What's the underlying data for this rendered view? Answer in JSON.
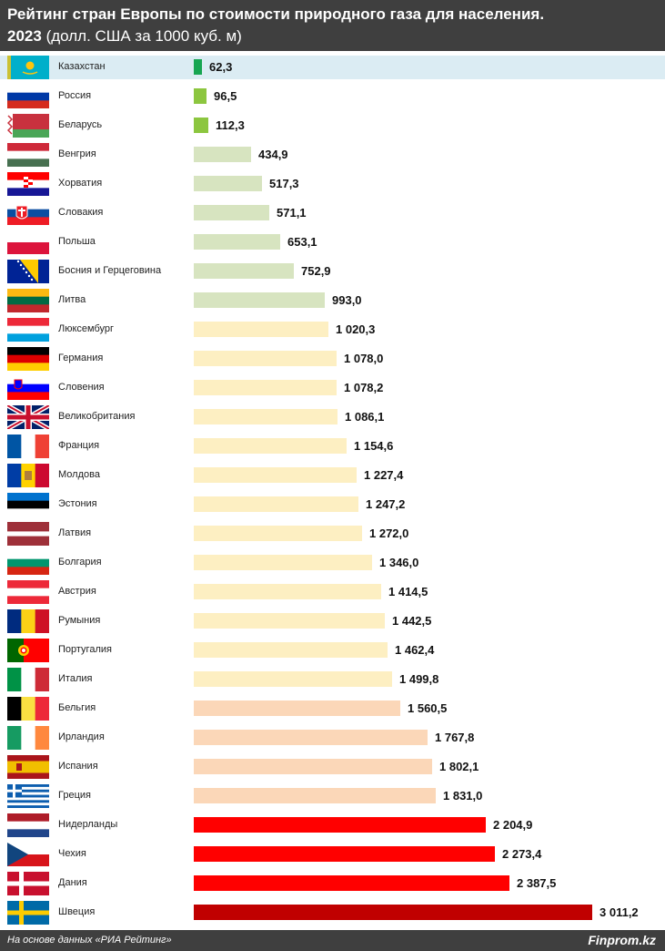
{
  "header": {
    "title_line1": "Рейтинг стран Европы по стоимости природного газа для населения.",
    "title_year": "2023",
    "title_unit": "(долл. США за 1000 куб. м)"
  },
  "chart_data": {
    "type": "bar",
    "orientation": "horizontal",
    "title": "Рейтинг стран Европы по стоимости природного газа для населения. 2023 (долл. США за 1000 куб. м)",
    "xlim": [
      0,
      3011.2
    ],
    "grid": false,
    "legend": "none",
    "categories": [
      "Казахстан",
      "Россия",
      "Беларусь",
      "Венгрия",
      "Хорватия",
      "Словакия",
      "Польша",
      "Босния и Герцеговина",
      "Литва",
      "Люксембург",
      "Германия",
      "Словения",
      "Великобритания",
      "Франция",
      "Молдова",
      "Эстония",
      "Латвия",
      "Болгария",
      "Австрия",
      "Румыния",
      "Португалия",
      "Италия",
      "Бельгия",
      "Ирландия",
      "Испания",
      "Греция",
      "Нидерланды",
      "Чехия",
      "Дания",
      "Швеция"
    ],
    "values": [
      62.3,
      96.5,
      112.3,
      434.9,
      517.3,
      571.1,
      653.1,
      752.9,
      993.0,
      1020.3,
      1078.0,
      1078.2,
      1086.1,
      1154.6,
      1227.4,
      1247.2,
      1272.0,
      1346.0,
      1414.5,
      1442.5,
      1462.4,
      1499.8,
      1560.5,
      1767.8,
      1802.1,
      1831.0,
      2204.9,
      2273.4,
      2387.5,
      3011.2
    ],
    "labels": [
      "62,3",
      "96,5",
      "112,3",
      "434,9",
      "517,3",
      "571,1",
      "653,1",
      "752,9",
      "993,0",
      "1 020,3",
      "1 078,0",
      "1 078,2",
      "1 086,1",
      "1 154,6",
      "1 227,4",
      "1 247,2",
      "1 272,0",
      "1 346,0",
      "1 414,5",
      "1 442,5",
      "1 462,4",
      "1 499,8",
      "1 560,5",
      "1 767,8",
      "1 802,1",
      "1 831,0",
      "2 204,9",
      "2 273,4",
      "2 387,5",
      "3 011,2"
    ],
    "colors": [
      "#17a652",
      "#8cc63f",
      "#8cc63f",
      "#d7e4c0",
      "#d7e4c0",
      "#d7e4c0",
      "#d7e4c0",
      "#d7e4c0",
      "#d7e4c0",
      "#fdefc2",
      "#fdefc2",
      "#fdefc2",
      "#fdefc2",
      "#fdefc2",
      "#fdefc2",
      "#fdefc2",
      "#fdefc2",
      "#fdefc2",
      "#fdefc2",
      "#fdefc2",
      "#fdefc2",
      "#fdefc2",
      "#fbd7b8",
      "#fbd7b8",
      "#fbd7b8",
      "#fbd7b8",
      "#ff0000",
      "#ff0000",
      "#ff0000",
      "#c00000"
    ],
    "highlight_row_color": "#dbecf3",
    "highlight_index": 0
  },
  "flags": [
    "kz-flag",
    "ru-flag",
    "by-flag",
    "hu-flag",
    "hr-flag",
    "sk-flag",
    "pl-flag",
    "ba-flag",
    "lt-flag",
    "lu-flag",
    "de-flag",
    "si-flag",
    "gb-flag",
    "fr-flag",
    "md-flag",
    "ee-flag",
    "lv-flag",
    "bg-flag",
    "at-flag",
    "ro-flag",
    "pt-flag",
    "it-flag",
    "be-flag",
    "ie-flag",
    "es-flag",
    "gr-flag",
    "nl-flag",
    "cz-flag",
    "dk-flag",
    "se-flag"
  ],
  "footer": {
    "source": "На основе данных «РИА Рейтинг»",
    "brand": "Finprom.kz"
  }
}
